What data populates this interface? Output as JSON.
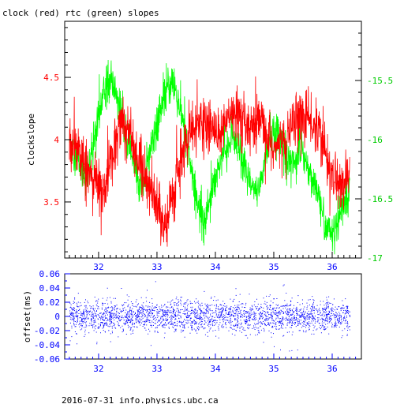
{
  "title": "clock (red) rtc (green) slopes",
  "footer": "2016-07-31 info.physics.ubc.ca",
  "chart_data": [
    {
      "type": "line",
      "title": "clock (red) rtc (green) slopes",
      "xlabel": "",
      "ylabel": "clockslope",
      "xlim": [
        31.42,
        36.5
      ],
      "x_ticks": [
        "32",
        "33",
        "34",
        "35",
        "36"
      ],
      "ylim_left": [
        3.05,
        4.95
      ],
      "left_ticks": [
        "3.5",
        "4",
        "4.5"
      ],
      "ylim_right": [
        -17,
        -15
      ],
      "right_ticks": [
        "-15.5",
        "-16",
        "-16.5",
        "-17"
      ],
      "grid": false,
      "series": [
        {
          "name": "clock",
          "axis": "left",
          "color": "#ff0000",
          "x": [
            31.5,
            31.6,
            31.7,
            31.8,
            31.9,
            32.0,
            32.1,
            32.2,
            32.3,
            32.4,
            32.5,
            32.6,
            32.7,
            32.8,
            32.9,
            33.0,
            33.1,
            33.2,
            33.3,
            33.4,
            33.5,
            33.6,
            33.7,
            33.8,
            33.9,
            34.0,
            34.1,
            34.2,
            34.3,
            34.4,
            34.5,
            34.6,
            34.7,
            34.8,
            34.9,
            35.0,
            35.1,
            35.2,
            35.3,
            35.4,
            35.5,
            35.6,
            35.7,
            35.8,
            35.9,
            36.0,
            36.1,
            36.2,
            36.3
          ],
          "y": [
            3.95,
            4.0,
            3.85,
            3.75,
            3.7,
            3.65,
            3.6,
            3.8,
            4.05,
            4.15,
            4.1,
            3.95,
            3.8,
            3.7,
            3.55,
            3.45,
            3.35,
            3.4,
            3.6,
            3.8,
            4.0,
            4.05,
            4.1,
            4.15,
            4.1,
            4.1,
            4.05,
            4.15,
            4.2,
            4.15,
            4.1,
            4.05,
            4.1,
            4.15,
            4.0,
            3.9,
            3.95,
            4.05,
            4.1,
            4.15,
            4.2,
            4.15,
            4.1,
            4.05,
            3.85,
            3.75,
            3.65,
            3.6,
            3.8
          ]
        },
        {
          "name": "rtc",
          "axis": "right",
          "color": "#00ff00",
          "x": [
            31.5,
            31.6,
            31.7,
            31.8,
            31.9,
            32.0,
            32.1,
            32.2,
            32.3,
            32.4,
            32.5,
            32.6,
            32.7,
            32.8,
            32.9,
            33.0,
            33.1,
            33.2,
            33.3,
            33.4,
            33.5,
            33.6,
            33.7,
            33.8,
            33.9,
            34.0,
            34.1,
            34.2,
            34.3,
            34.4,
            34.5,
            34.6,
            34.7,
            34.8,
            34.9,
            35.0,
            35.1,
            35.2,
            35.3,
            35.4,
            35.5,
            35.6,
            35.7,
            35.8,
            35.9,
            36.0,
            36.1,
            36.2,
            36.3
          ],
          "y": [
            -16.0,
            -16.1,
            -16.25,
            -16.3,
            -16.1,
            -15.75,
            -15.6,
            -15.5,
            -15.6,
            -15.8,
            -16.0,
            -16.2,
            -16.4,
            -16.3,
            -16.05,
            -15.85,
            -15.7,
            -15.55,
            -15.55,
            -15.75,
            -16.0,
            -16.3,
            -16.55,
            -16.7,
            -16.5,
            -16.3,
            -16.15,
            -16.05,
            -16.0,
            -16.1,
            -16.25,
            -16.4,
            -16.45,
            -16.3,
            -16.05,
            -15.95,
            -15.95,
            -16.1,
            -16.2,
            -16.15,
            -16.1,
            -16.25,
            -16.4,
            -16.55,
            -16.75,
            -16.8,
            -16.7,
            -16.55,
            -16.45
          ]
        }
      ]
    },
    {
      "type": "scatter",
      "xlabel": "",
      "ylabel": "offset(ms)",
      "xlim": [
        31.42,
        36.5
      ],
      "x_ticks": [
        "32",
        "33",
        "34",
        "35",
        "36"
      ],
      "ylim": [
        -0.06,
        0.06
      ],
      "y_ticks": [
        "-0.06",
        "-0.04",
        "-0.02",
        "0",
        "0.02",
        "0.04",
        "0.06"
      ],
      "grid": false,
      "series": [
        {
          "name": "offset",
          "color": "#0000ff",
          "x_range": [
            31.5,
            36.3
          ],
          "center": 0.0,
          "spread": 0.02,
          "x": [
            31.55,
            31.7,
            31.9,
            32.1,
            32.3,
            32.5,
            32.7,
            32.9,
            33.1,
            33.3,
            33.5,
            33.7,
            33.9,
            34.1,
            34.3,
            34.5,
            34.7,
            34.9,
            35.1,
            35.3,
            35.5,
            35.7,
            35.9,
            36.1,
            36.25
          ],
          "y": [
            0.004,
            -0.006,
            0.012,
            -0.01,
            0.008,
            -0.004,
            0.014,
            -0.012,
            0.006,
            -0.008,
            0.01,
            -0.002,
            0.016,
            -0.014,
            0.002,
            -0.006,
            0.012,
            -0.01,
            0.004,
            -0.012,
            0.008,
            -0.004,
            0.014,
            -0.008,
            0.006
          ]
        }
      ]
    }
  ]
}
